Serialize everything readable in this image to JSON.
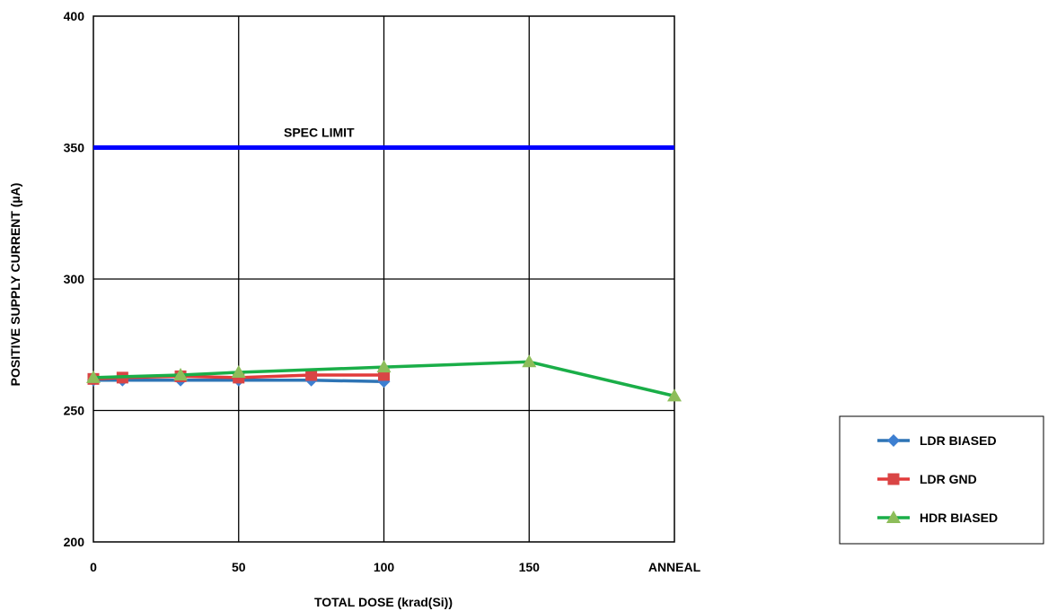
{
  "chart_data": {
    "type": "line",
    "xlabel": "TOTAL DOSE (krad(Si))",
    "ylabel": "POSITIVE SUPPLY CURRENT (µA)",
    "ylim": [
      200,
      400
    ],
    "xlim": [
      0,
      200
    ],
    "x_ticks": [
      0,
      50,
      100,
      150,
      200
    ],
    "x_tick_labels": [
      "0",
      "50",
      "100",
      "150",
      "ANNEAL"
    ],
    "y_ticks": [
      200,
      250,
      300,
      350,
      400
    ],
    "y_tick_labels": [
      "200",
      "250",
      "300",
      "350",
      "400"
    ],
    "grid": true,
    "legend_position": "bottom-right",
    "reference_line": {
      "label": "SPEC LIMIT",
      "y": 350,
      "color": "#0000ff"
    },
    "series": [
      {
        "name": "LDR BIASED",
        "color": "#2e74b5",
        "marker": "diamond",
        "x": [
          0,
          10,
          30,
          50,
          75,
          100
        ],
        "y": [
          261.5,
          261.5,
          261.5,
          261.5,
          261.5,
          261
        ]
      },
      {
        "name": "LDR GND",
        "color": "#e23b3b",
        "marker": "square",
        "x": [
          0,
          10,
          30,
          50,
          75,
          100
        ],
        "y": [
          262,
          262.5,
          263,
          262.5,
          263.5,
          263.5
        ]
      },
      {
        "name": "HDR BIASED",
        "color": "#1aae48",
        "marker": "triangle",
        "x": [
          0,
          30,
          50,
          100,
          150,
          200
        ],
        "y": [
          262.5,
          263.5,
          264.5,
          266.5,
          268.5,
          255.5
        ]
      }
    ]
  }
}
